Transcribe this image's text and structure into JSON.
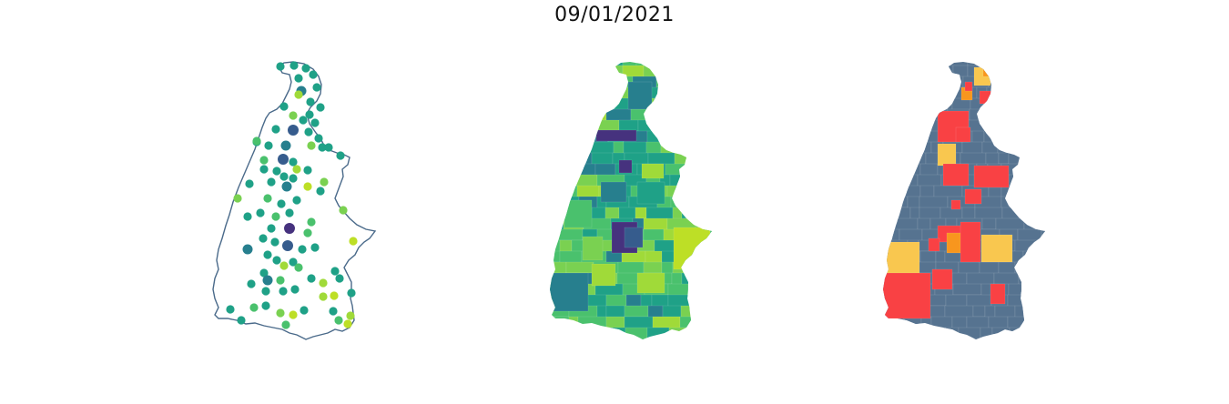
{
  "title": "09/01/2021",
  "colors": {
    "outline": "#4a6a8a",
    "viridis": [
      "#46327e",
      "#365c8d",
      "#277f8e",
      "#1fa187",
      "#4ac16d",
      "#7ad151",
      "#a0da39",
      "#bddf26"
    ],
    "map3_base": "#567390",
    "map3_red": "#f94144",
    "map3_yellow": "#f9c74f",
    "map3_orange": "#f8961e"
  },
  "panels": [
    {
      "id": "points-map",
      "kind": "proportional-symbols"
    },
    {
      "id": "choropleth-map",
      "kind": "choropleth"
    },
    {
      "id": "category-map",
      "kind": "categorical-choropleth"
    }
  ]
}
